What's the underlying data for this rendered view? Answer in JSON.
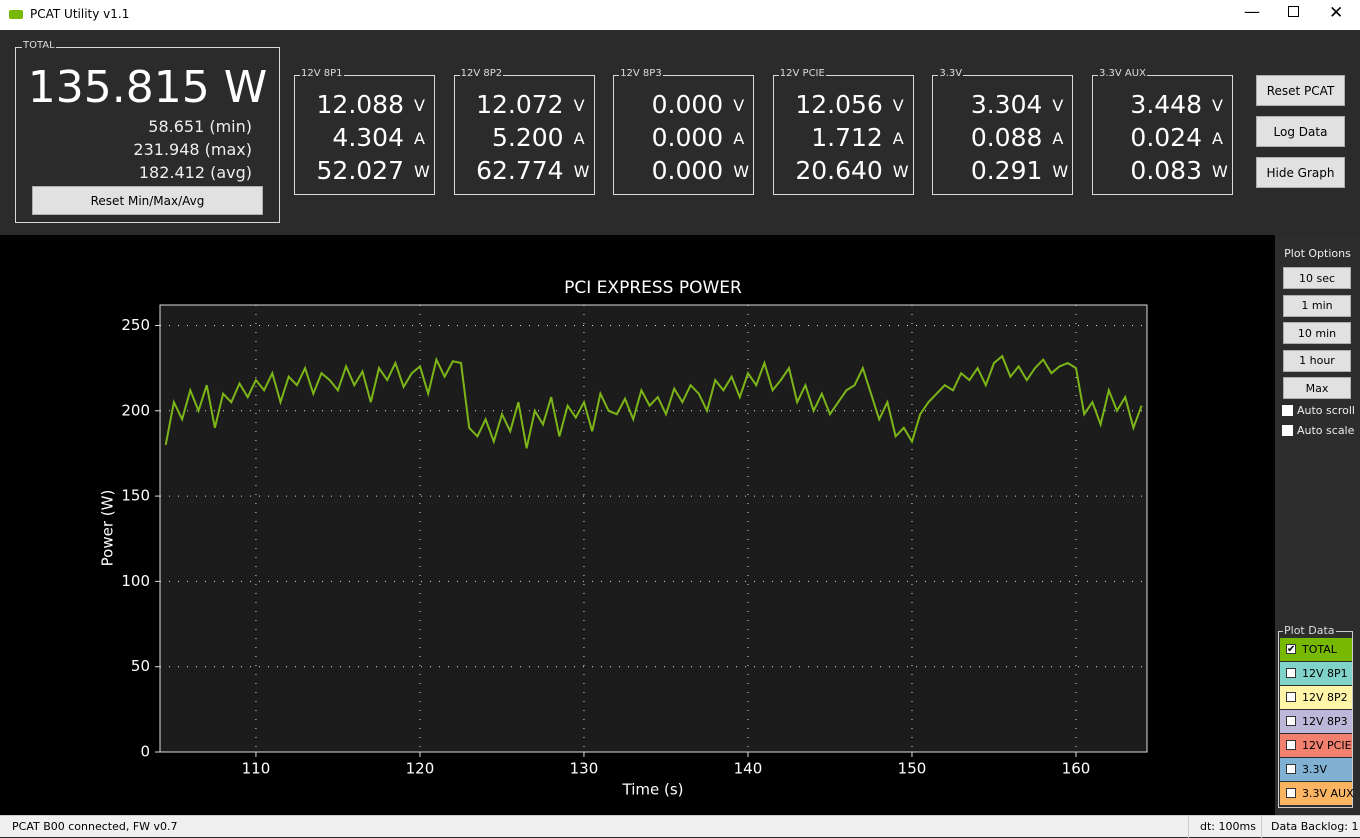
{
  "window": {
    "title": "PCAT Utility v1.1"
  },
  "total": {
    "label": "TOTAL",
    "value": "135.815 W",
    "min": "58.651 (min)",
    "max": "231.948 (max)",
    "avg": "182.412 (avg)",
    "reset": "Reset Min/Max/Avg"
  },
  "channels": [
    {
      "name": "12V 8P1",
      "readings": [
        {
          "value": "12.088",
          "unit": "V"
        },
        {
          "value": "4.304",
          "unit": "A"
        },
        {
          "value": "52.027",
          "unit": "W"
        }
      ]
    },
    {
      "name": "12V 8P2",
      "readings": [
        {
          "value": "12.072",
          "unit": "V"
        },
        {
          "value": "5.200",
          "unit": "A"
        },
        {
          "value": "62.774",
          "unit": "W"
        }
      ]
    },
    {
      "name": "12V 8P3",
      "readings": [
        {
          "value": "0.000",
          "unit": "V"
        },
        {
          "value": "0.000",
          "unit": "A"
        },
        {
          "value": "0.000",
          "unit": "W"
        }
      ]
    },
    {
      "name": "12V PCIE",
      "readings": [
        {
          "value": "12.056",
          "unit": "V"
        },
        {
          "value": "1.712",
          "unit": "A"
        },
        {
          "value": "20.640",
          "unit": "W"
        }
      ]
    },
    {
      "name": "3.3V",
      "readings": [
        {
          "value": "3.304",
          "unit": "V"
        },
        {
          "value": "0.088",
          "unit": "A"
        },
        {
          "value": "0.291",
          "unit": "W"
        }
      ]
    },
    {
      "name": "3.3V AUX",
      "readings": [
        {
          "value": "3.448",
          "unit": "V"
        },
        {
          "value": "0.024",
          "unit": "A"
        },
        {
          "value": "0.083",
          "unit": "W"
        }
      ]
    }
  ],
  "buttons": [
    "Reset PCAT",
    "Log Data",
    "Hide Graph"
  ],
  "plot_options": {
    "title": "Plot Options",
    "buttons": [
      "10 sec",
      "1 min",
      "10 min",
      "1 hour",
      "Max"
    ],
    "checkboxes": [
      "Auto scroll",
      "Auto scale"
    ]
  },
  "plot_data": {
    "title": "Plot Data",
    "items": [
      {
        "name": "TOTAL",
        "color": "#76b900",
        "checked": true
      },
      {
        "name": "12V 8P1",
        "color": "#7fd3c8",
        "checked": false
      },
      {
        "name": "12V 8P2",
        "color": "#fff5a8",
        "checked": false
      },
      {
        "name": "12V 8P3",
        "color": "#bdb8d9",
        "checked": false
      },
      {
        "name": "12V PCIE",
        "color": "#f2806f",
        "checked": false
      },
      {
        "name": "3.3V",
        "color": "#80b1d3",
        "checked": false
      },
      {
        "name": "3.3V AUX",
        "color": "#fbb462",
        "checked": false
      }
    ]
  },
  "status": [
    "PCAT B00 connected, FW v0.7",
    "dt: 100ms",
    "Data Backlog: 1"
  ],
  "chart_data": {
    "type": "line",
    "title": "PCI EXPRESS POWER",
    "x_label": "Time (s)",
    "y_label": "Power (W)",
    "color": "#7cb518",
    "grid": true,
    "xlim": [
      104.15,
      164.33
    ],
    "ylim": [
      0,
      262
    ],
    "xticks": [
      110,
      120,
      130,
      140,
      150,
      160
    ],
    "yticks": [
      0,
      50,
      100,
      150,
      200,
      250
    ],
    "x": [
      104.5,
      105,
      105.5,
      106,
      106.5,
      107,
      107.5,
      108,
      108.5,
      109,
      109.5,
      110,
      110.5,
      111,
      111.5,
      112,
      112.5,
      113,
      113.5,
      114,
      114.5,
      115,
      115.5,
      116,
      116.5,
      117,
      117.5,
      118,
      118.5,
      119,
      119.5,
      120,
      120.5,
      121,
      121.5,
      122,
      122.5,
      123,
      123.5,
      124,
      124.5,
      125,
      125.5,
      126,
      126.5,
      127,
      127.5,
      128,
      128.5,
      129,
      129.5,
      130,
      130.5,
      131,
      131.5,
      132,
      132.5,
      133,
      133.5,
      134,
      134.5,
      135,
      135.5,
      136,
      136.5,
      137,
      137.5,
      138,
      138.5,
      139,
      139.5,
      140,
      140.5,
      141,
      141.5,
      142,
      142.5,
      143,
      143.5,
      144,
      144.5,
      145,
      145.5,
      146,
      146.5,
      147,
      147.5,
      148,
      148.5,
      149,
      149.5,
      150,
      150.5,
      151,
      151.5,
      152,
      152.5,
      153,
      153.5,
      154,
      154.5,
      155,
      155.5,
      156,
      156.5,
      157,
      157.5,
      158,
      158.5,
      159,
      159.5,
      160,
      160.5,
      161,
      161.5,
      162,
      162.5,
      163,
      163.5,
      164
    ],
    "values": [
      180,
      205,
      195,
      212,
      200,
      215,
      190,
      210,
      205,
      216,
      208,
      218,
      212,
      222,
      205,
      220,
      215,
      225,
      210,
      222,
      218,
      212,
      226,
      215,
      223,
      205,
      225,
      218,
      228,
      214,
      222,
      226,
      210,
      230,
      220,
      229,
      228,
      190,
      185,
      195,
      182,
      198,
      188,
      205,
      178,
      200,
      192,
      208,
      185,
      203,
      196,
      205,
      188,
      210,
      200,
      198,
      207,
      195,
      212,
      203,
      208,
      198,
      213,
      205,
      215,
      210,
      200,
      218,
      212,
      220,
      208,
      222,
      215,
      228,
      212,
      218,
      225,
      205,
      215,
      200,
      210,
      198,
      205,
      212,
      215,
      225,
      210,
      195,
      205,
      185,
      190,
      182,
      198,
      205,
      210,
      215,
      212,
      222,
      218,
      225,
      215,
      228,
      232,
      220,
      226,
      218,
      225,
      230,
      222,
      226,
      228,
      225,
      198,
      205,
      192,
      212,
      200,
      208,
      190,
      203
    ]
  }
}
